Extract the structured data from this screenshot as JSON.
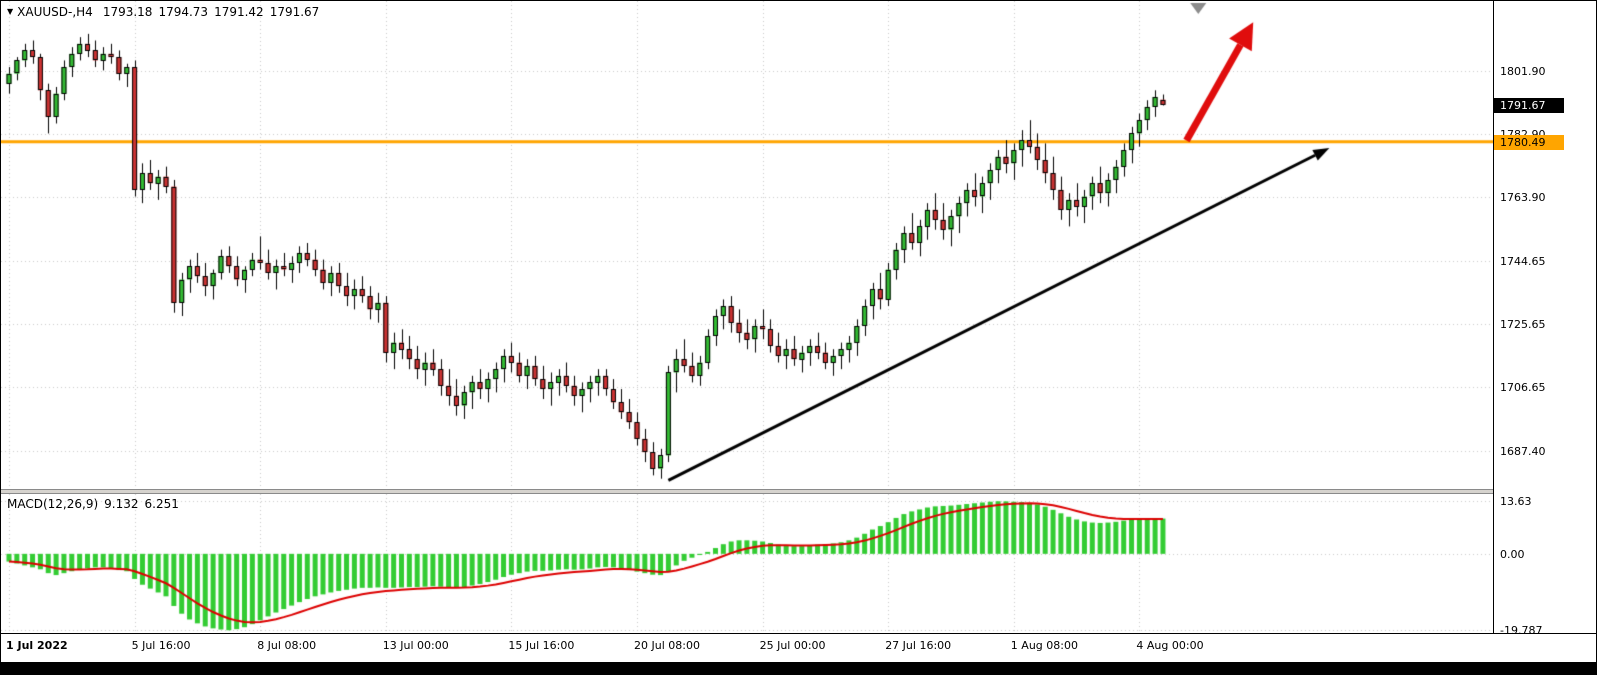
{
  "header": {
    "toggle_glyph": "▼",
    "symbol_period": "XAUUSD-,H4",
    "open": "1793.18",
    "high": "1794.73",
    "low": "1791.42",
    "close": "1791.67"
  },
  "colors": {
    "background": "#ffffff",
    "grid": "#c9c9c9",
    "up": "#33bb33",
    "down": "#cc3333",
    "wick": "#000000",
    "hline": "#FFA500",
    "trend_arrow": "#000000",
    "highlight_arrow": "#e00d0d",
    "macd_hist": "#33cc33",
    "macd_signal": "#dd0000",
    "badge_current_bg": "#000000",
    "badge_current_fg": "#ffffff",
    "shift_marker": "#8c8c8c"
  },
  "chart_data": {
    "type": "candlestick",
    "title": "XAUUSD-,H4",
    "symbol": "XAUUSD-",
    "timeframe": "H4",
    "price_axis": {
      "range": [
        1822.9,
        1675.9
      ],
      "grid": [
        {
          "label": "1801.90",
          "value": 1801.9
        },
        {
          "label": "1782.90",
          "value": 1782.9
        },
        {
          "label": "1763.90",
          "value": 1763.9
        },
        {
          "label": "1744.65",
          "value": 1744.65
        },
        {
          "label": "1725.65",
          "value": 1725.65
        },
        {
          "label": "1706.65",
          "value": 1706.65
        },
        {
          "label": "1687.40",
          "value": 1687.4
        }
      ],
      "current": {
        "label": "1791.67",
        "value": 1791.67
      },
      "hline": {
        "label": "1780.49",
        "value": 1780.49
      }
    },
    "time_axis": [
      {
        "label": "1 Jul 2022",
        "bar": 0
      },
      {
        "label": "5 Jul 16:00",
        "bar": 16
      },
      {
        "label": "8 Jul 08:00",
        "bar": 32
      },
      {
        "label": "13 Jul 00:00",
        "bar": 48
      },
      {
        "label": "15 Jul 16:00",
        "bar": 64
      },
      {
        "label": "20 Jul 08:00",
        "bar": 80
      },
      {
        "label": "25 Jul 00:00",
        "bar": 96
      },
      {
        "label": "27 Jul 16:00",
        "bar": 112
      },
      {
        "label": "1 Aug 08:00",
        "bar": 128
      },
      {
        "label": "4 Aug 00:00",
        "bar": 144
      }
    ],
    "candles": [
      [
        1798,
        1803,
        1795,
        1801
      ],
      [
        1801,
        1806,
        1799,
        1805
      ],
      [
        1805,
        1810,
        1803,
        1808
      ],
      [
        1808,
        1811,
        1804,
        1806
      ],
      [
        1806,
        1807,
        1793,
        1796
      ],
      [
        1796,
        1798,
        1783,
        1788
      ],
      [
        1788,
        1797,
        1786,
        1795
      ],
      [
        1795,
        1805,
        1793,
        1803
      ],
      [
        1803,
        1809,
        1800,
        1807
      ],
      [
        1807,
        1812,
        1805,
        1810
      ],
      [
        1810,
        1813,
        1806,
        1808
      ],
      [
        1808,
        1811,
        1803,
        1805
      ],
      [
        1805,
        1809,
        1802,
        1807
      ],
      [
        1807,
        1810,
        1804,
        1806
      ],
      [
        1806,
        1808,
        1799,
        1801
      ],
      [
        1801,
        1804,
        1797,
        1803
      ],
      [
        1803,
        1805,
        1764,
        1766
      ],
      [
        1766,
        1774,
        1762,
        1771
      ],
      [
        1771,
        1775,
        1766,
        1768
      ],
      [
        1768,
        1772,
        1763,
        1770
      ],
      [
        1770,
        1773,
        1765,
        1767
      ],
      [
        1767,
        1769,
        1729,
        1732
      ],
      [
        1732,
        1741,
        1728,
        1739
      ],
      [
        1739,
        1745,
        1735,
        1743
      ],
      [
        1743,
        1747,
        1738,
        1740
      ],
      [
        1740,
        1744,
        1734,
        1737
      ],
      [
        1737,
        1742,
        1733,
        1741
      ],
      [
        1741,
        1748,
        1739,
        1746
      ],
      [
        1746,
        1749,
        1741,
        1743
      ],
      [
        1743,
        1746,
        1737,
        1739
      ],
      [
        1739,
        1743,
        1735,
        1742
      ],
      [
        1742,
        1747,
        1740,
        1745
      ],
      [
        1745,
        1752,
        1742,
        1744
      ],
      [
        1744,
        1748,
        1739,
        1741
      ],
      [
        1741,
        1745,
        1736,
        1743
      ],
      [
        1743,
        1747,
        1740,
        1742
      ],
      [
        1742,
        1746,
        1738,
        1744
      ],
      [
        1744,
        1749,
        1741,
        1747
      ],
      [
        1747,
        1750,
        1743,
        1745
      ],
      [
        1745,
        1748,
        1740,
        1742
      ],
      [
        1742,
        1745,
        1736,
        1738
      ],
      [
        1738,
        1743,
        1734,
        1741
      ],
      [
        1741,
        1744,
        1735,
        1737
      ],
      [
        1737,
        1741,
        1731,
        1734
      ],
      [
        1734,
        1739,
        1730,
        1736
      ],
      [
        1736,
        1740,
        1732,
        1734
      ],
      [
        1734,
        1737,
        1727,
        1730
      ],
      [
        1730,
        1735,
        1726,
        1732
      ],
      [
        1732,
        1734,
        1714,
        1717
      ],
      [
        1717,
        1723,
        1712,
        1720
      ],
      [
        1720,
        1724,
        1715,
        1718
      ],
      [
        1718,
        1722,
        1712,
        1715
      ],
      [
        1715,
        1719,
        1709,
        1712
      ],
      [
        1712,
        1717,
        1707,
        1714
      ],
      [
        1714,
        1718,
        1710,
        1712
      ],
      [
        1712,
        1715,
        1704,
        1707
      ],
      [
        1707,
        1712,
        1701,
        1704
      ],
      [
        1704,
        1709,
        1698,
        1701
      ],
      [
        1701,
        1707,
        1697,
        1705
      ],
      [
        1705,
        1710,
        1700,
        1708
      ],
      [
        1708,
        1712,
        1703,
        1706
      ],
      [
        1706,
        1711,
        1702,
        1709
      ],
      [
        1709,
        1714,
        1705,
        1712
      ],
      [
        1712,
        1718,
        1708,
        1716
      ],
      [
        1716,
        1720,
        1711,
        1714
      ],
      [
        1714,
        1717,
        1708,
        1710
      ],
      [
        1710,
        1715,
        1706,
        1713
      ],
      [
        1713,
        1716,
        1707,
        1709
      ],
      [
        1709,
        1713,
        1703,
        1706
      ],
      [
        1706,
        1711,
        1701,
        1708
      ],
      [
        1708,
        1712,
        1704,
        1710
      ],
      [
        1710,
        1714,
        1705,
        1707
      ],
      [
        1707,
        1710,
        1701,
        1704
      ],
      [
        1704,
        1708,
        1699,
        1706
      ],
      [
        1706,
        1710,
        1702,
        1708
      ],
      [
        1708,
        1712,
        1704,
        1710
      ],
      [
        1710,
        1712,
        1704,
        1706
      ],
      [
        1706,
        1709,
        1700,
        1702
      ],
      [
        1702,
        1706,
        1697,
        1699
      ],
      [
        1699,
        1703,
        1694,
        1696
      ],
      [
        1696,
        1699,
        1689,
        1691
      ],
      [
        1691,
        1694,
        1684,
        1687
      ],
      [
        1687,
        1690,
        1680,
        1682
      ],
      [
        1682,
        1688,
        1679,
        1686
      ],
      [
        1686,
        1713,
        1684,
        1711
      ],
      [
        1711,
        1718,
        1705,
        1715
      ],
      [
        1715,
        1721,
        1711,
        1713
      ],
      [
        1713,
        1717,
        1708,
        1710
      ],
      [
        1710,
        1716,
        1707,
        1714
      ],
      [
        1714,
        1724,
        1712,
        1722
      ],
      [
        1722,
        1730,
        1719,
        1728
      ],
      [
        1728,
        1733,
        1724,
        1731
      ],
      [
        1731,
        1734,
        1723,
        1726
      ],
      [
        1726,
        1730,
        1720,
        1723
      ],
      [
        1723,
        1727,
        1718,
        1721
      ],
      [
        1721,
        1727,
        1717,
        1725
      ],
      [
        1725,
        1730,
        1721,
        1724
      ],
      [
        1724,
        1727,
        1717,
        1719
      ],
      [
        1719,
        1723,
        1714,
        1716
      ],
      [
        1716,
        1721,
        1712,
        1718
      ],
      [
        1718,
        1722,
        1713,
        1715
      ],
      [
        1715,
        1719,
        1711,
        1717
      ],
      [
        1717,
        1721,
        1713,
        1719
      ],
      [
        1719,
        1723,
        1715,
        1717
      ],
      [
        1717,
        1720,
        1712,
        1714
      ],
      [
        1714,
        1718,
        1710,
        1716
      ],
      [
        1716,
        1720,
        1712,
        1718
      ],
      [
        1718,
        1722,
        1714,
        1720
      ],
      [
        1720,
        1727,
        1716,
        1725
      ],
      [
        1725,
        1733,
        1722,
        1731
      ],
      [
        1731,
        1738,
        1727,
        1736
      ],
      [
        1736,
        1741,
        1730,
        1733
      ],
      [
        1733,
        1744,
        1731,
        1742
      ],
      [
        1742,
        1750,
        1739,
        1748
      ],
      [
        1748,
        1755,
        1744,
        1753
      ],
      [
        1753,
        1759,
        1748,
        1750
      ],
      [
        1750,
        1757,
        1746,
        1755
      ],
      [
        1755,
        1762,
        1751,
        1760
      ],
      [
        1760,
        1765,
        1754,
        1757
      ],
      [
        1757,
        1762,
        1751,
        1754
      ],
      [
        1754,
        1760,
        1749,
        1758
      ],
      [
        1758,
        1764,
        1753,
        1762
      ],
      [
        1762,
        1768,
        1758,
        1766
      ],
      [
        1766,
        1771,
        1761,
        1764
      ],
      [
        1764,
        1770,
        1759,
        1768
      ],
      [
        1768,
        1774,
        1763,
        1772
      ],
      [
        1772,
        1778,
        1768,
        1776
      ],
      [
        1776,
        1781,
        1771,
        1774
      ],
      [
        1774,
        1780,
        1769,
        1778
      ],
      [
        1778,
        1784,
        1773,
        1781
      ],
      [
        1781,
        1787,
        1777,
        1779
      ],
      [
        1779,
        1783,
        1772,
        1775
      ],
      [
        1775,
        1780,
        1768,
        1771
      ],
      [
        1771,
        1776,
        1763,
        1766
      ],
      [
        1766,
        1770,
        1757,
        1760
      ],
      [
        1760,
        1765,
        1755,
        1763
      ],
      [
        1763,
        1768,
        1758,
        1761
      ],
      [
        1761,
        1766,
        1756,
        1764
      ],
      [
        1764,
        1770,
        1760,
        1768
      ],
      [
        1768,
        1773,
        1762,
        1765
      ],
      [
        1765,
        1771,
        1761,
        1769
      ],
      [
        1769,
        1775,
        1765,
        1773
      ],
      [
        1773,
        1780,
        1770,
        1778
      ],
      [
        1778,
        1785,
        1774,
        1783
      ],
      [
        1783,
        1789,
        1779,
        1787
      ],
      [
        1787,
        1793,
        1784,
        1791
      ],
      [
        1791,
        1796,
        1788,
        1794
      ],
      [
        1793.18,
        1794.73,
        1791.42,
        1791.67
      ]
    ],
    "macd": {
      "label": "MACD(12,26,9)",
      "main": "9.132",
      "signal": "6.251",
      "range": [
        15.5,
        -20.5
      ],
      "axis": [
        {
          "label": "13.63",
          "value": 13.63
        },
        {
          "label": "0.00",
          "value": 0
        },
        {
          "label": "-19.787",
          "value": -19.787
        }
      ],
      "histogram": [
        -2.0,
        -2.5,
        -3.0,
        -3.5,
        -4.0,
        -5.0,
        -5.5,
        -5.0,
        -4.5,
        -4.0,
        -3.8,
        -3.5,
        -3.5,
        -3.8,
        -4.2,
        -4.5,
        -6.5,
        -8.0,
        -9.0,
        -10.0,
        -11.0,
        -13.5,
        -15.5,
        -17.0,
        -18.0,
        -18.8,
        -19.3,
        -19.6,
        -19.787,
        -19.5,
        -19.0,
        -18.2,
        -17.2,
        -16.2,
        -15.2,
        -14.3,
        -13.4,
        -12.5,
        -11.7,
        -11.0,
        -10.5,
        -10.0,
        -9.6,
        -9.3,
        -9.0,
        -8.8,
        -8.8,
        -8.7,
        -8.8,
        -8.8,
        -8.7,
        -8.6,
        -8.6,
        -8.5,
        -8.4,
        -8.5,
        -8.7,
        -8.8,
        -8.6,
        -8.2,
        -7.8,
        -7.3,
        -6.7,
        -6.0,
        -5.4,
        -5.0,
        -4.6,
        -4.4,
        -4.4,
        -4.3,
        -4.1,
        -4.0,
        -4.1,
        -4.0,
        -3.8,
        -3.5,
        -3.4,
        -3.5,
        -3.8,
        -4.2,
        -4.6,
        -5.0,
        -5.4,
        -5.5,
        -4.5,
        -3.0,
        -1.8,
        -1.0,
        -0.3,
        0.5,
        1.5,
        2.5,
        3.2,
        3.5,
        3.5,
        3.4,
        3.2,
        2.8,
        2.4,
        2.2,
        2.0,
        2.0,
        2.2,
        2.4,
        2.5,
        2.7,
        3.0,
        3.5,
        4.2,
        5.2,
        6.3,
        7.2,
        8.2,
        9.3,
        10.3,
        11.0,
        11.5,
        12.0,
        12.3,
        12.4,
        12.5,
        12.7,
        12.9,
        13.1,
        13.3,
        13.5,
        13.63,
        13.6,
        13.5,
        13.4,
        13.2,
        12.8,
        12.2,
        11.4,
        10.5,
        9.6,
        8.9,
        8.4,
        8.1,
        8.0,
        8.1,
        8.3,
        8.6,
        8.9,
        9.0,
        9.05,
        9.1,
        9.132
      ]
    },
    "annotations": {
      "trendline": {
        "from": {
          "bar": 84,
          "price": 1678.5
        },
        "to": {
          "bar": 168.2,
          "price": 1778.6
        }
      },
      "red_arrow": {
        "from": {
          "bar": 150,
          "price": 1780.9
        },
        "to": {
          "bar": 158.5,
          "price": 1816.5
        }
      },
      "shift_marker_bar": 151.5
    }
  }
}
